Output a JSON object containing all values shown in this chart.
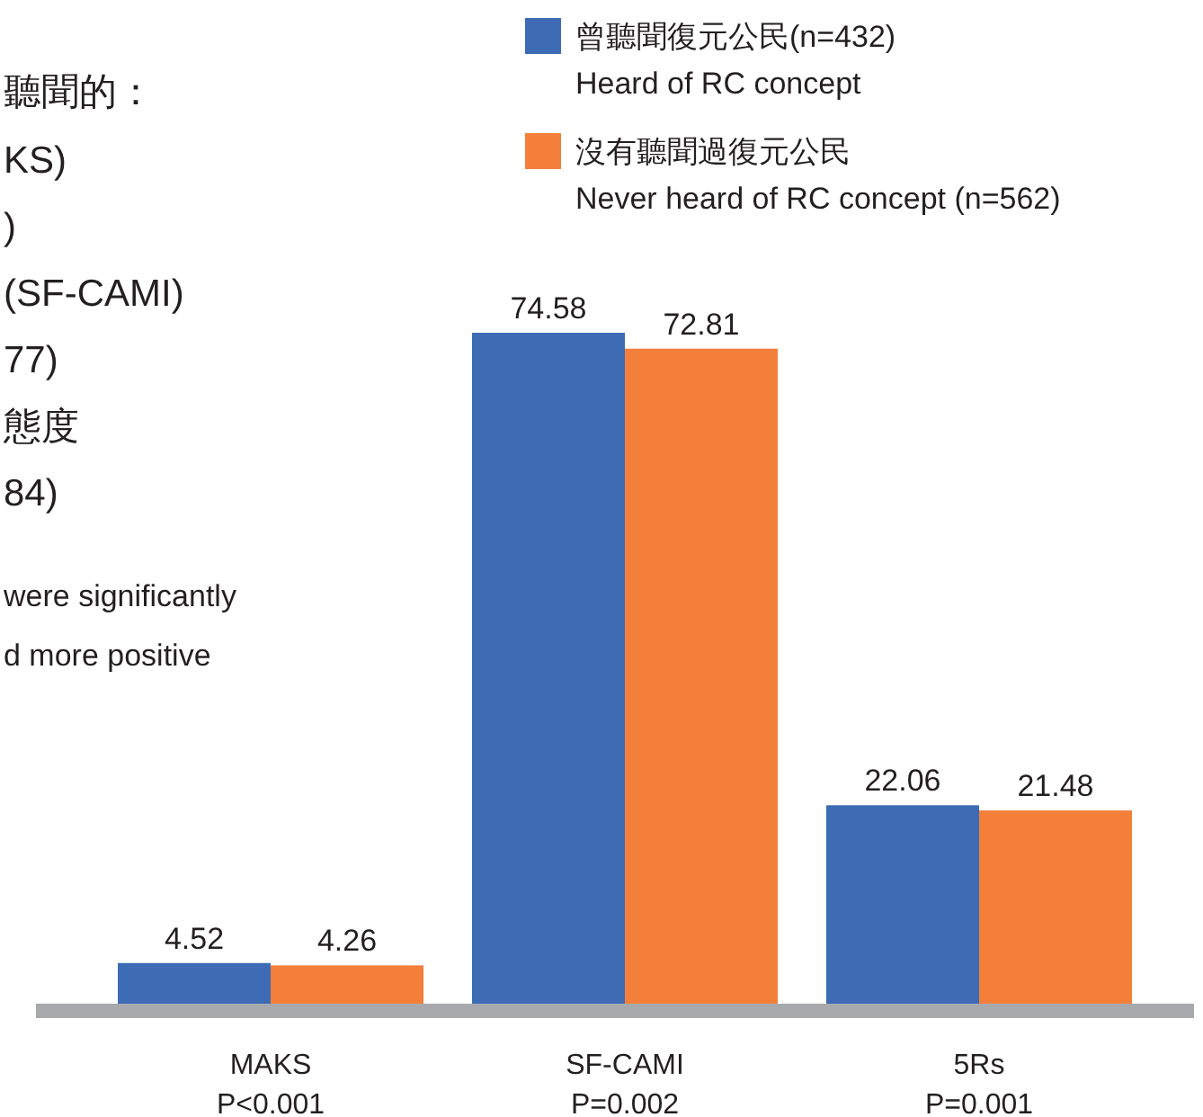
{
  "chart_data": {
    "type": "bar",
    "categories": [
      "MAKS\nP<0.001",
      "SF-CAMI\nP=0.002",
      "5Rs\nP=0.001"
    ],
    "series": [
      {
        "name": "曾聽聞復元公民(n=432)\nHeard of RC concept",
        "color": "#3d6cb5",
        "values": [
          4.52,
          74.58,
          22.06
        ]
      },
      {
        "name": "沒有聽聞過復元公民\nNever heard of RC concept (n=562)",
        "color": "#f47f3a",
        "values": [
          4.26,
          72.81,
          21.48
        ]
      }
    ],
    "data_labels": true,
    "legend": "top right",
    "annotations": [
      "聽聞的：",
      "KS)",
      ")",
      "(SF-CAMI)",
      "77)",
      "態度",
      "84)",
      "were significantly",
      "d more positive"
    ]
  }
}
